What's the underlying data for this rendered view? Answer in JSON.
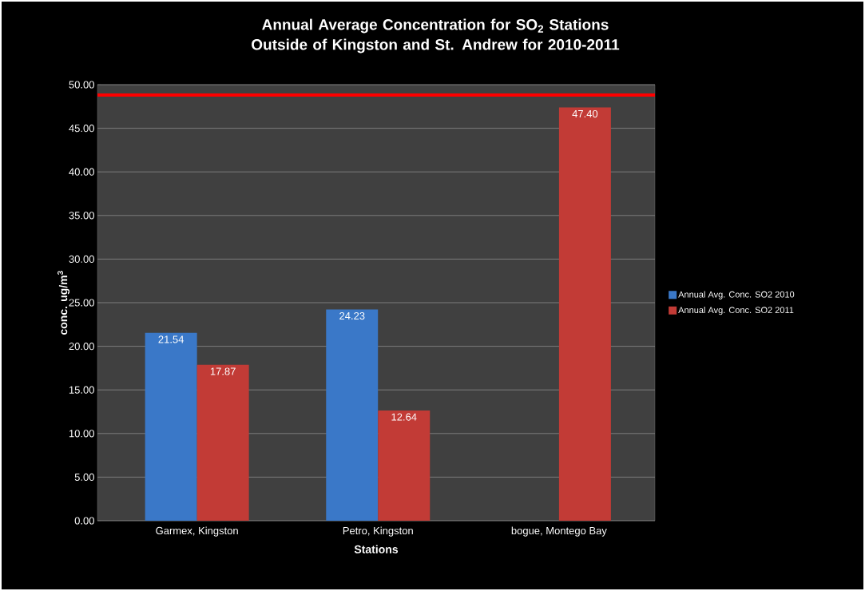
{
  "chart_data": {
    "type": "bar",
    "title": "Annual Average Concentration for SO$_{2}$ Stations Outside of Kingston and St. Andrew for 2010-2011",
    "xlabel": "Stations",
    "ylabel": "conc. ug/m$^{3}$",
    "categories": [
      "Garmex, Kingston",
      "Petro, Kingston",
      "bogue, Montego Bay"
    ],
    "series": [
      {
        "name": "Annual Avg. Conc. SO2 2010",
        "color": "#3a78c8",
        "values": [
          21.54,
          24.23,
          null
        ],
        "value_labels": [
          "21.54",
          "24.23",
          null
        ]
      },
      {
        "name": "Annual Avg. Conc. SO2 2011",
        "color": "#c23b36",
        "values": [
          17.87,
          12.64,
          47.4
        ],
        "value_labels": [
          "17.87",
          "12.64",
          "47.40"
        ]
      }
    ],
    "ylim": [
      0,
      50
    ],
    "yticks": [
      {
        "value": 0,
        "label": "0.00"
      },
      {
        "value": 5,
        "label": "5.00"
      },
      {
        "value": 10,
        "label": "10.00"
      },
      {
        "value": 15,
        "label": "15.00"
      },
      {
        "value": 20,
        "label": "20.00"
      },
      {
        "value": 25,
        "label": "25.00"
      },
      {
        "value": 30,
        "label": "30.00"
      },
      {
        "value": 35,
        "label": "35.00"
      },
      {
        "value": 40,
        "label": "40.00"
      },
      {
        "value": 45,
        "label": "45.00"
      },
      {
        "value": 50,
        "label": "50.00"
      }
    ],
    "ref_lines": [
      {
        "axis": "y",
        "value": 48.8,
        "color": "#ff0000"
      }
    ],
    "grid": "y",
    "legend": "right"
  }
}
